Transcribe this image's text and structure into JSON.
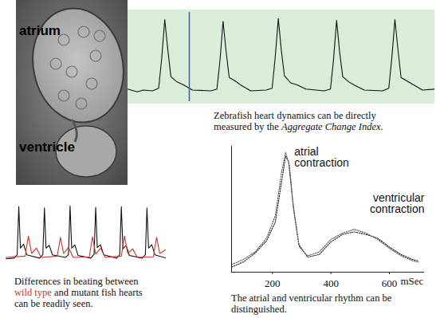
{
  "image": {
    "labels": [
      "atrium",
      "ventricle"
    ]
  },
  "chart_data": [
    {
      "type": "line",
      "caption": [
        {
          "text": "Zebrafish heart dynamics can be directly measured by the "
        },
        {
          "text": "Aggregate Change Index",
          "italic": true
        },
        {
          "text": "."
        }
      ],
      "xlim": [
        0,
        100
      ],
      "ylim": [
        0,
        100
      ],
      "tick_labels": false,
      "cursor": {
        "x": 20,
        "color": "#3355cc"
      },
      "series": [
        {
          "color": "#111111",
          "x": [
            0,
            3,
            5,
            8,
            10,
            11,
            12,
            13,
            14,
            16,
            18,
            21,
            27,
            29,
            30,
            31,
            32,
            33,
            35,
            37,
            40,
            45,
            47,
            48,
            49,
            50,
            51,
            53,
            55,
            58,
            64,
            66,
            67,
            68,
            69,
            70,
            72,
            74,
            77,
            83,
            85,
            86,
            87,
            88,
            89,
            91,
            93,
            96,
            100
          ],
          "values": [
            14,
            11,
            13,
            12,
            15,
            48,
            92,
            58,
            28,
            22,
            19,
            13,
            12,
            14,
            46,
            90,
            56,
            27,
            23,
            18,
            12,
            13,
            15,
            50,
            93,
            57,
            29,
            21,
            19,
            14,
            12,
            14,
            47,
            91,
            55,
            28,
            22,
            18,
            13,
            12,
            15,
            49,
            92,
            58,
            27,
            23,
            19,
            13,
            14
          ]
        }
      ]
    },
    {
      "type": "line",
      "caption": [
        {
          "text": "Differences in beating between "
        },
        {
          "text": "wild type",
          "color": "#c0392b"
        },
        {
          "text": " and mutant fish hearts can be readily seen."
        }
      ],
      "xlim": [
        0,
        100
      ],
      "ylim": [
        0,
        100
      ],
      "tick_labels": false,
      "series": [
        {
          "color": "#111111",
          "x": [
            0,
            5,
            7,
            8,
            9,
            11,
            13,
            21,
            23,
            24,
            25,
            27,
            29,
            37,
            39,
            40,
            41,
            43,
            45,
            53,
            55,
            56,
            57,
            59,
            61,
            69,
            71,
            72,
            73,
            75,
            77,
            85,
            87,
            88,
            89,
            91,
            93,
            100
          ],
          "values": [
            14,
            15,
            20,
            92,
            30,
            36,
            20,
            15,
            20,
            90,
            30,
            34,
            20,
            16,
            20,
            93,
            30,
            35,
            19,
            15,
            21,
            91,
            31,
            35,
            20,
            15,
            20,
            92,
            29,
            34,
            19,
            15,
            20,
            90,
            30,
            35,
            20,
            15
          ]
        },
        {
          "color": "#c0392b",
          "x": [
            0,
            12,
            14,
            16,
            19,
            22,
            32,
            34,
            36,
            39,
            42,
            52,
            54,
            56,
            59,
            62,
            72,
            74,
            76,
            79,
            82,
            92,
            94,
            96,
            100
          ],
          "values": [
            16,
            18,
            48,
            22,
            30,
            16,
            18,
            46,
            22,
            31,
            16,
            17,
            47,
            21,
            30,
            16,
            18,
            48,
            22,
            29,
            16,
            17,
            46,
            22,
            28
          ]
        }
      ]
    },
    {
      "type": "line",
      "caption": [
        {
          "text": "The atrial and ventricular rhythm can be distinguished."
        }
      ],
      "xlim": [
        60,
        720
      ],
      "ylim": [
        0,
        100
      ],
      "xticks": [
        200,
        400,
        600
      ],
      "x_label": "mSec",
      "tick_labels": "x",
      "annotations": [
        {
          "text": "atrial contraction",
          "x": 275,
          "y": 99
        },
        {
          "text": "ventricular contraction",
          "x": 720,
          "y": 62
        }
      ],
      "series": [
        {
          "color": "#222222",
          "line_style": "dotted",
          "x": [
            60,
            100,
            140,
            180,
            210,
            230,
            245,
            255,
            270,
            290,
            320,
            360,
            400,
            440,
            480,
            520,
            560,
            600,
            640,
            680,
            700
          ],
          "values": [
            4,
            8,
            15,
            25,
            40,
            70,
            92,
            88,
            55,
            22,
            12,
            14,
            24,
            30,
            32,
            30,
            27,
            20,
            14,
            10,
            9
          ]
        },
        {
          "color": "#555555",
          "line_style": "dotted",
          "x": [
            60,
            100,
            140,
            180,
            210,
            230,
            245,
            258,
            272,
            292,
            320,
            360,
            400,
            440,
            480,
            520,
            560,
            600,
            640,
            680,
            700
          ],
          "values": [
            6,
            10,
            16,
            27,
            45,
            78,
            95,
            85,
            50,
            20,
            13,
            16,
            26,
            31,
            34,
            31,
            26,
            19,
            13,
            9,
            8
          ]
        }
      ]
    }
  ]
}
